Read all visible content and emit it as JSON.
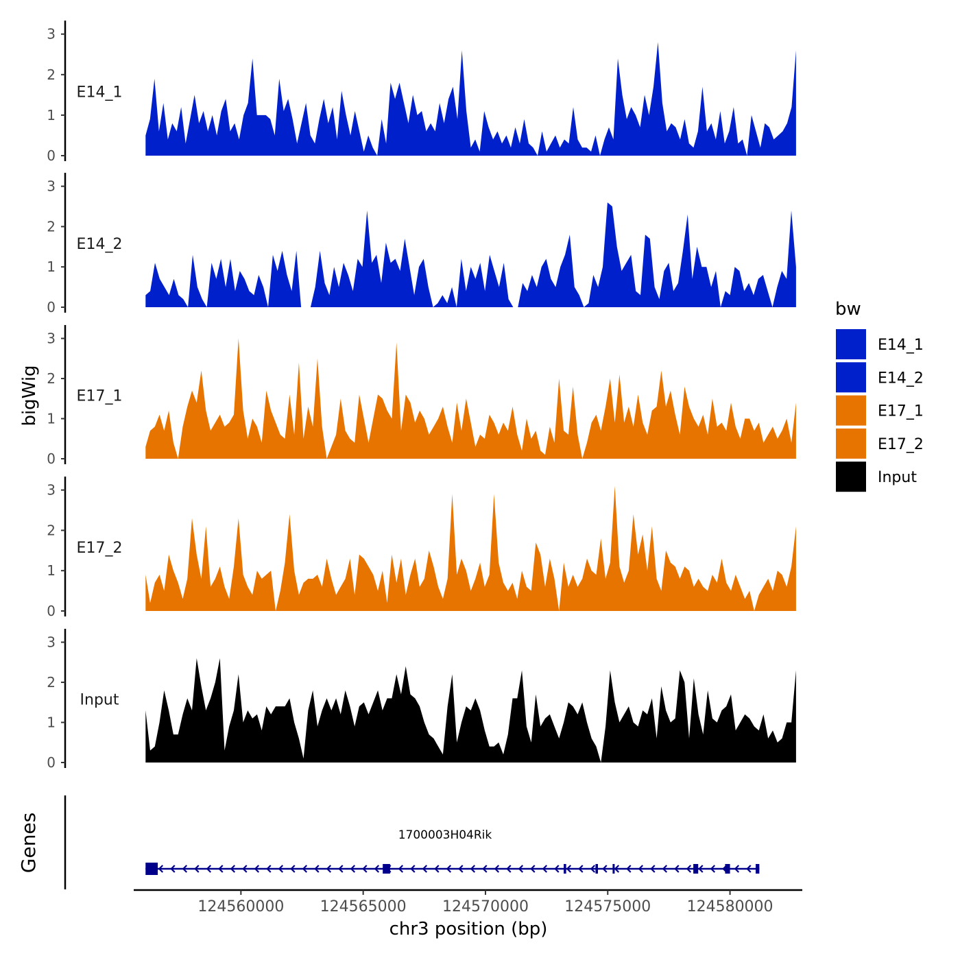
{
  "chart_data": {
    "type": "area",
    "subtype": "genome-browser",
    "ylabel": "bigWig",
    "xlabel": "chr3 position (bp)",
    "xlim": [
      124555700,
      124582900
    ],
    "ylim": [
      0,
      3.3
    ],
    "y_ticks": [
      0,
      1,
      2,
      3
    ],
    "x_ticks": [
      124560000,
      124565000,
      124570000,
      124575000,
      124580000
    ],
    "x_tick_labels": [
      "124560000",
      "124565000",
      "124570000",
      "124575000",
      "124580000"
    ],
    "track_start": 124556100,
    "track_end": 124582700,
    "legend": {
      "title": "bw",
      "position": "right",
      "entries": [
        {
          "label": "E14_1",
          "color": "#0020CC"
        },
        {
          "label": "E14_2",
          "color": "#0020CC"
        },
        {
          "label": "E17_1",
          "color": "#E87400"
        },
        {
          "label": "E17_2",
          "color": "#E87400"
        },
        {
          "label": "Input",
          "color": "#000000"
        }
      ]
    },
    "series": [
      {
        "name": "E14_1",
        "color": "#0020CC",
        "values": [
          0.5,
          0.9,
          1.9,
          0.6,
          1.3,
          0.4,
          0.8,
          0.6,
          1.2,
          0.3,
          0.9,
          1.5,
          0.8,
          1.1,
          0.6,
          1.0,
          0.5,
          1.1,
          1.4,
          0.6,
          0.8,
          0.4,
          1.0,
          1.3,
          2.4,
          1.0,
          1.0,
          1.0,
          0.9,
          0.5,
          1.9,
          1.1,
          1.4,
          0.9,
          0.3,
          0.8,
          1.3,
          0.5,
          0.3,
          0.9,
          1.4,
          0.8,
          1.2,
          0.4,
          1.6,
          1.0,
          0.5,
          1.1,
          0.6,
          0.1,
          0.5,
          0.2,
          0.0,
          0.9,
          0.3,
          1.8,
          1.4,
          1.8,
          1.3,
          0.8,
          1.5,
          1.0,
          1.1,
          0.6,
          0.8,
          0.6,
          1.3,
          0.8,
          1.4,
          1.7,
          0.9,
          2.6,
          1.1,
          0.2,
          0.4,
          0.1,
          1.1,
          0.7,
          0.4,
          0.6,
          0.3,
          0.5,
          0.2,
          0.7,
          0.3,
          0.9,
          0.3,
          0.2,
          0.0,
          0.6,
          0.1,
          0.3,
          0.5,
          0.2,
          0.4,
          0.3,
          1.2,
          0.4,
          0.2,
          0.2,
          0.1,
          0.5,
          0.0,
          0.4,
          0.7,
          0.4,
          2.4,
          1.5,
          0.9,
          1.2,
          1.0,
          0.7,
          1.5,
          1.0,
          1.7,
          2.8,
          1.3,
          0.6,
          0.8,
          0.7,
          0.4,
          0.9,
          0.3,
          0.2,
          0.6,
          1.7,
          0.6,
          0.8,
          0.4,
          1.1,
          0.3,
          0.6,
          1.2,
          0.3,
          0.4,
          0.0,
          1.0,
          0.6,
          0.2,
          0.8,
          0.7,
          0.4,
          0.5,
          0.6,
          0.8,
          1.2,
          2.6
        ]
      },
      {
        "name": "E14_2",
        "color": "#0020CC",
        "values": [
          0.3,
          0.4,
          1.1,
          0.7,
          0.5,
          0.3,
          0.7,
          0.3,
          0.2,
          0.0,
          1.3,
          0.5,
          0.2,
          0.0,
          1.1,
          0.7,
          1.2,
          0.5,
          1.2,
          0.4,
          0.9,
          0.7,
          0.4,
          0.3,
          0.8,
          0.5,
          0.0,
          1.3,
          0.9,
          1.4,
          0.8,
          0.4,
          1.4,
          0.0,
          0.0,
          0.0,
          0.5,
          1.4,
          0.6,
          0.3,
          1.0,
          0.5,
          1.1,
          0.8,
          0.4,
          1.2,
          1.0,
          2.4,
          1.1,
          1.3,
          0.6,
          1.6,
          1.1,
          1.2,
          0.9,
          1.7,
          1.0,
          0.3,
          1.0,
          1.2,
          0.5,
          0.0,
          0.1,
          0.3,
          0.1,
          0.5,
          0.0,
          1.2,
          0.4,
          1.0,
          0.7,
          1.1,
          0.4,
          1.3,
          0.9,
          0.5,
          1.1,
          0.2,
          0.0,
          0.0,
          0.6,
          0.4,
          0.8,
          0.5,
          1.0,
          1.2,
          0.7,
          0.5,
          1.0,
          1.3,
          1.8,
          0.5,
          0.3,
          0.0,
          0.1,
          0.8,
          0.5,
          1.0,
          2.6,
          2.5,
          1.5,
          0.9,
          1.1,
          1.3,
          0.4,
          0.3,
          1.8,
          1.7,
          0.5,
          0.2,
          0.9,
          1.1,
          0.4,
          0.6,
          1.4,
          2.3,
          0.7,
          1.5,
          1.0,
          1.0,
          0.5,
          0.9,
          0.0,
          0.4,
          0.3,
          1.0,
          0.9,
          0.4,
          0.6,
          0.3,
          0.7,
          0.8,
          0.4,
          0.0,
          0.5,
          0.9,
          0.7,
          2.4,
          1.0
        ]
      },
      {
        "name": "E17_1",
        "color": "#E87400",
        "values": [
          0.3,
          0.7,
          0.8,
          1.1,
          0.7,
          1.2,
          0.4,
          0.0,
          0.8,
          1.3,
          1.7,
          1.4,
          2.2,
          1.2,
          0.7,
          0.9,
          1.1,
          0.8,
          0.9,
          1.1,
          3.0,
          1.2,
          0.5,
          1.0,
          0.8,
          0.4,
          1.7,
          1.2,
          0.9,
          0.6,
          0.5,
          1.6,
          0.6,
          2.4,
          0.5,
          1.3,
          0.8,
          2.5,
          0.8,
          0.0,
          0.3,
          0.6,
          1.5,
          0.7,
          0.5,
          0.4,
          1.6,
          1.0,
          0.4,
          1.0,
          1.6,
          1.5,
          1.2,
          1.0,
          2.9,
          0.7,
          1.6,
          1.4,
          0.9,
          1.2,
          1.0,
          0.6,
          0.8,
          1.0,
          1.3,
          0.8,
          0.4,
          1.4,
          0.7,
          1.5,
          0.9,
          0.3,
          0.6,
          0.5,
          1.1,
          0.9,
          0.6,
          0.9,
          0.7,
          1.3,
          0.6,
          0.2,
          1.0,
          0.5,
          0.7,
          0.2,
          0.1,
          0.8,
          0.4,
          2.0,
          0.7,
          0.6,
          1.8,
          0.6,
          0.0,
          0.4,
          0.9,
          1.1,
          0.7,
          1.3,
          2.0,
          0.9,
          2.1,
          0.9,
          1.3,
          0.8,
          1.6,
          0.9,
          0.6,
          1.2,
          1.3,
          2.2,
          1.3,
          1.7,
          1.1,
          0.6,
          1.8,
          1.3,
          1.0,
          0.8,
          1.1,
          0.6,
          1.5,
          0.8,
          0.9,
          0.7,
          1.4,
          0.8,
          0.5,
          1.0,
          1.0,
          0.7,
          0.9,
          0.4,
          0.6,
          0.8,
          0.5,
          0.7,
          1.0,
          0.4,
          1.4
        ]
      },
      {
        "name": "E17_2",
        "color": "#E87400",
        "values": [
          0.9,
          0.2,
          0.7,
          0.9,
          0.5,
          1.4,
          1.0,
          0.7,
          0.3,
          0.8,
          2.3,
          1.4,
          0.8,
          2.1,
          0.6,
          0.8,
          1.1,
          0.6,
          0.3,
          1.1,
          2.3,
          0.9,
          0.6,
          0.4,
          1.0,
          0.8,
          0.9,
          1.0,
          0.0,
          0.5,
          1.2,
          2.4,
          1.0,
          0.4,
          0.7,
          0.8,
          0.8,
          0.9,
          0.6,
          1.3,
          0.8,
          0.4,
          0.6,
          0.8,
          1.3,
          0.4,
          1.4,
          1.3,
          1.1,
          0.9,
          0.5,
          1.0,
          0.2,
          1.4,
          0.7,
          1.3,
          0.4,
          0.9,
          1.3,
          0.6,
          0.8,
          1.5,
          1.1,
          0.6,
          0.3,
          0.8,
          2.9,
          0.9,
          1.3,
          1.0,
          0.5,
          0.8,
          1.2,
          0.6,
          0.9,
          2.9,
          1.2,
          0.7,
          0.5,
          0.7,
          0.3,
          1.0,
          0.6,
          0.5,
          1.7,
          1.4,
          0.6,
          1.3,
          0.8,
          0.0,
          1.2,
          0.6,
          0.9,
          0.6,
          0.8,
          1.3,
          1.0,
          0.9,
          1.8,
          0.8,
          1.2,
          3.1,
          1.1,
          0.7,
          1.0,
          2.4,
          1.4,
          1.9,
          1.0,
          2.1,
          0.8,
          0.5,
          1.5,
          1.2,
          1.1,
          0.8,
          1.1,
          1.0,
          0.6,
          0.8,
          0.6,
          0.5,
          0.9,
          0.7,
          1.3,
          0.7,
          0.5,
          0.9,
          0.6,
          0.3,
          0.5,
          0.0,
          0.4,
          0.6,
          0.8,
          0.5,
          1.0,
          0.9,
          0.6,
          1.1,
          2.1
        ]
      },
      {
        "name": "Input",
        "color": "#000000",
        "values": [
          1.3,
          0.3,
          0.4,
          1.0,
          1.8,
          1.3,
          0.7,
          0.7,
          1.2,
          1.6,
          1.3,
          2.6,
          1.9,
          1.3,
          1.6,
          2.0,
          2.6,
          0.3,
          0.9,
          1.3,
          2.2,
          1.0,
          1.3,
          1.1,
          1.2,
          0.8,
          1.4,
          1.2,
          1.4,
          1.4,
          1.4,
          1.6,
          1.0,
          0.6,
          0.1,
          1.3,
          1.8,
          0.9,
          1.3,
          1.6,
          1.3,
          1.6,
          1.2,
          1.8,
          1.4,
          0.9,
          1.4,
          1.5,
          1.2,
          1.5,
          1.8,
          1.3,
          1.6,
          1.6,
          2.2,
          1.7,
          2.4,
          1.7,
          1.6,
          1.4,
          1.0,
          0.7,
          0.6,
          0.4,
          0.2,
          1.4,
          2.2,
          0.5,
          1.0,
          1.4,
          1.3,
          1.6,
          1.3,
          0.8,
          0.4,
          0.4,
          0.5,
          0.2,
          0.7,
          1.6,
          1.6,
          2.3,
          0.9,
          0.5,
          1.7,
          0.9,
          1.1,
          1.2,
          0.9,
          0.6,
          1.0,
          1.5,
          1.4,
          1.2,
          1.5,
          1.0,
          0.6,
          0.4,
          0.0,
          0.9,
          2.3,
          1.5,
          1.0,
          1.2,
          1.4,
          1.0,
          0.9,
          1.3,
          1.2,
          1.6,
          0.6,
          1.9,
          1.3,
          1.0,
          1.1,
          2.3,
          2.0,
          0.6,
          2.1,
          1.2,
          0.7,
          1.8,
          1.1,
          1.0,
          1.3,
          1.4,
          1.7,
          0.8,
          1.0,
          1.2,
          1.1,
          0.9,
          0.8,
          1.2,
          0.6,
          0.8,
          0.5,
          0.6,
          1.0,
          1.0,
          2.3
        ]
      }
    ],
    "genes_track": {
      "label": "Genes",
      "gene_name": "1700003H04Rik",
      "start": 124556100,
      "end": 124581200,
      "strand": "-",
      "color": "#00008B",
      "exons": [
        [
          124556100,
          124556600
        ],
        [
          124565800,
          124566100
        ],
        [
          124573200,
          124573300
        ],
        [
          124574500,
          124574600
        ],
        [
          124575200,
          124575250
        ],
        [
          124578500,
          124578700
        ],
        [
          124579800,
          124580000
        ],
        [
          124581050,
          124581200
        ]
      ]
    }
  }
}
